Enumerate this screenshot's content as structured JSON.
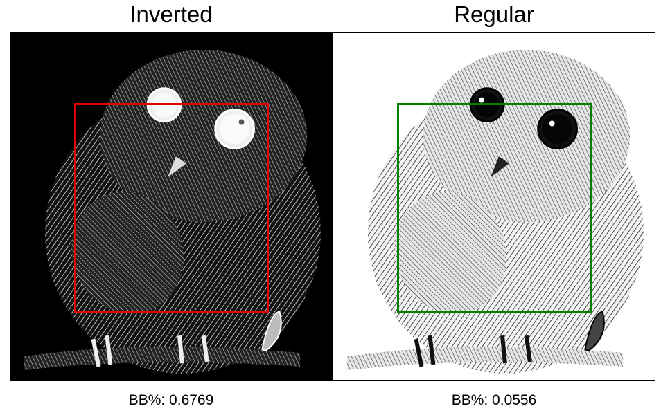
{
  "panels": [
    {
      "id": "inverted",
      "title": "Inverted",
      "caption": "BB%: 0.6769",
      "box_color": "#e00000",
      "image_desc_icon": "owl-illustration-inverted"
    },
    {
      "id": "regular",
      "title": "Regular",
      "caption": "BB%: 0.0556",
      "box_color": "#008000",
      "image_desc_icon": "owl-illustration-regular"
    }
  ]
}
